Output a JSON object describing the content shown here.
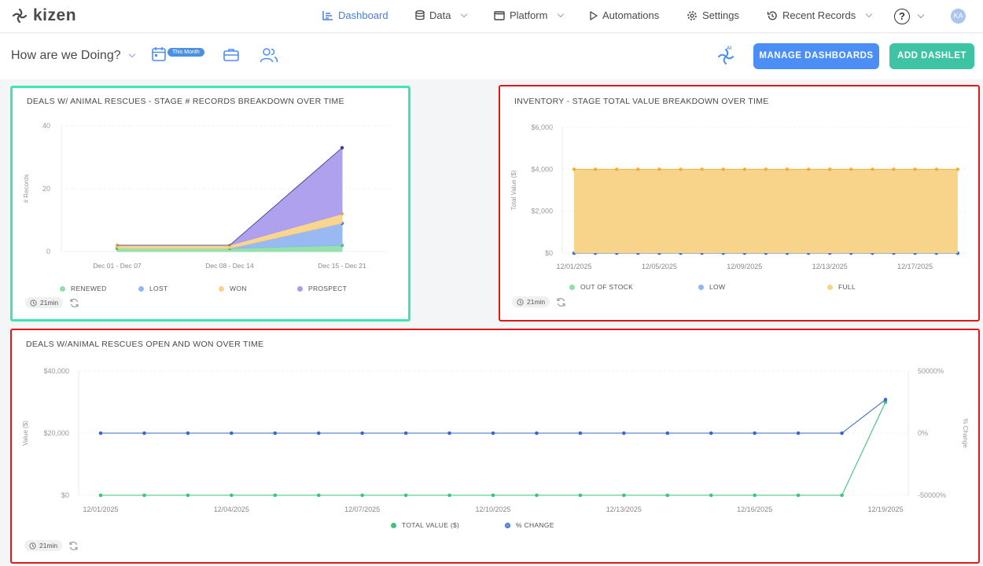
{
  "brand": {
    "name": "kizen"
  },
  "nav": {
    "items": [
      {
        "label": "Dashboard",
        "icon": "dashboard-icon",
        "active": true,
        "dropdown": false
      },
      {
        "label": "Data",
        "icon": "database-icon",
        "active": false,
        "dropdown": true
      },
      {
        "label": "Platform",
        "icon": "window-icon",
        "active": false,
        "dropdown": true
      },
      {
        "label": "Automations",
        "icon": "play-icon",
        "active": false,
        "dropdown": false
      },
      {
        "label": "Settings",
        "icon": "gear-icon",
        "active": false,
        "dropdown": false
      },
      {
        "label": "Recent Records",
        "icon": "history-icon",
        "active": false,
        "dropdown": true
      }
    ],
    "help_label": "?",
    "avatar_initials": "KA"
  },
  "subheader": {
    "dashboard_name": "How are we Doing?",
    "date_badge": "This Month",
    "ai_badge": "AI",
    "manage_button": "MANAGE DASHBOARDS",
    "add_button": "ADD DASHLET"
  },
  "colors": {
    "primary": "#4b8ef5",
    "accent": "#3ec3a4",
    "selected_border": "#3ee6b4",
    "alert_border": "#e01818"
  },
  "cards": [
    {
      "title": "DEALS W/ ANIMAL RESCUES - STAGE # RECORDS BREAKDOWN OVER TIME",
      "refresh_label": "21min",
      "legend": [
        "RENEWED",
        "LOST",
        "WON",
        "PROSPECT"
      ]
    },
    {
      "title": "INVENTORY - STAGE TOTAL VALUE BREAKDOWN OVER TIME",
      "refresh_label": "21min",
      "legend": [
        "OUT OF STOCK",
        "LOW",
        "FULL"
      ]
    },
    {
      "title": "DEALS W/ANIMAL RESCUES OPEN AND WON OVER TIME",
      "refresh_label": "21min",
      "legend": [
        "TOTAL VALUE ($)",
        "% CHANGE"
      ]
    }
  ],
  "chart_data": [
    {
      "type": "area",
      "stacked": true,
      "categories": [
        "Dec 01 - Dec 07",
        "Dec 08 - Dec 14",
        "Dec 15 - Dec 21"
      ],
      "ylabel": "# Records",
      "ylim": [
        0,
        40
      ],
      "yticks": [
        "0",
        "20",
        "40"
      ],
      "series": [
        {
          "name": "RENEWED",
          "color": "#8fe0a8",
          "values": [
            1,
            1,
            2
          ]
        },
        {
          "name": "LOST",
          "color": "#93b6f2",
          "values": [
            0,
            0,
            7
          ]
        },
        {
          "name": "WON",
          "color": "#f8d48a",
          "values": [
            1,
            1,
            3
          ]
        },
        {
          "name": "PROSPECT",
          "color": "#ab9cee",
          "values": [
            0,
            0,
            21
          ]
        }
      ]
    },
    {
      "type": "area",
      "x": [
        "12/01/2025",
        "12/02/2025",
        "12/03/2025",
        "12/04/2025",
        "12/05/2025",
        "12/06/2025",
        "12/07/2025",
        "12/08/2025",
        "12/09/2025",
        "12/10/2025",
        "12/11/2025",
        "12/12/2025",
        "12/13/2025",
        "12/14/2025",
        "12/15/2025",
        "12/16/2025",
        "12/17/2025",
        "12/18/2025",
        "12/19/2025"
      ],
      "xticks": [
        "12/01/2025",
        "12/05/2025",
        "12/09/2025",
        "12/13/2025",
        "12/17/2025"
      ],
      "ylabel": "Total Value ($)",
      "ylim": [
        0,
        6000
      ],
      "yticks": [
        "$0",
        "$2,000",
        "$4,000",
        "$6,000"
      ],
      "series": [
        {
          "name": "OUT OF STOCK",
          "color": "#8fe0a8",
          "values": [
            0,
            0,
            0,
            0,
            0,
            0,
            0,
            0,
            0,
            0,
            0,
            0,
            0,
            0,
            0,
            0,
            0,
            0,
            0
          ]
        },
        {
          "name": "LOW",
          "color": "#93b6f2",
          "values": [
            0,
            0,
            0,
            0,
            0,
            0,
            0,
            0,
            0,
            0,
            0,
            0,
            0,
            0,
            0,
            0,
            0,
            0,
            0
          ]
        },
        {
          "name": "FULL",
          "color": "#f8d48a",
          "values": [
            4000,
            4000,
            4000,
            4000,
            4000,
            4000,
            4000,
            4000,
            4000,
            4000,
            4000,
            4000,
            4000,
            4000,
            4000,
            4000,
            4000,
            4000,
            4000
          ]
        }
      ]
    },
    {
      "type": "line",
      "x": [
        "12/01/2025",
        "12/02/2025",
        "12/03/2025",
        "12/04/2025",
        "12/05/2025",
        "12/06/2025",
        "12/07/2025",
        "12/08/2025",
        "12/09/2025",
        "12/10/2025",
        "12/11/2025",
        "12/12/2025",
        "12/13/2025",
        "12/14/2025",
        "12/15/2025",
        "12/16/2025",
        "12/17/2025",
        "12/18/2025",
        "12/19/2025"
      ],
      "xticks": [
        "12/01/2025",
        "12/04/2025",
        "12/07/2025",
        "12/10/2025",
        "12/13/2025",
        "12/16/2025",
        "12/19/2025"
      ],
      "ylabel": "Value ($)",
      "ylabel_right": "% Change",
      "ylim": [
        0,
        40000
      ],
      "ylim_right": [
        -50000,
        50000
      ],
      "yticks": [
        "$0",
        "$20,000",
        "$40,000"
      ],
      "yticks_right": [
        "-50000%",
        "0%",
        "50000%"
      ],
      "series": [
        {
          "name": "TOTAL VALUE ($)",
          "color": "#3cc47a",
          "axis": "left",
          "values": [
            0,
            0,
            0,
            0,
            0,
            0,
            0,
            0,
            0,
            0,
            0,
            0,
            0,
            0,
            0,
            0,
            0,
            0,
            30000
          ]
        },
        {
          "name": "% CHANGE",
          "color": "#3a68c8",
          "axis": "right",
          "values": [
            0,
            0,
            0,
            0,
            0,
            0,
            0,
            0,
            0,
            0,
            0,
            0,
            0,
            0,
            0,
            0,
            0,
            0,
            27000
          ]
        }
      ]
    }
  ]
}
